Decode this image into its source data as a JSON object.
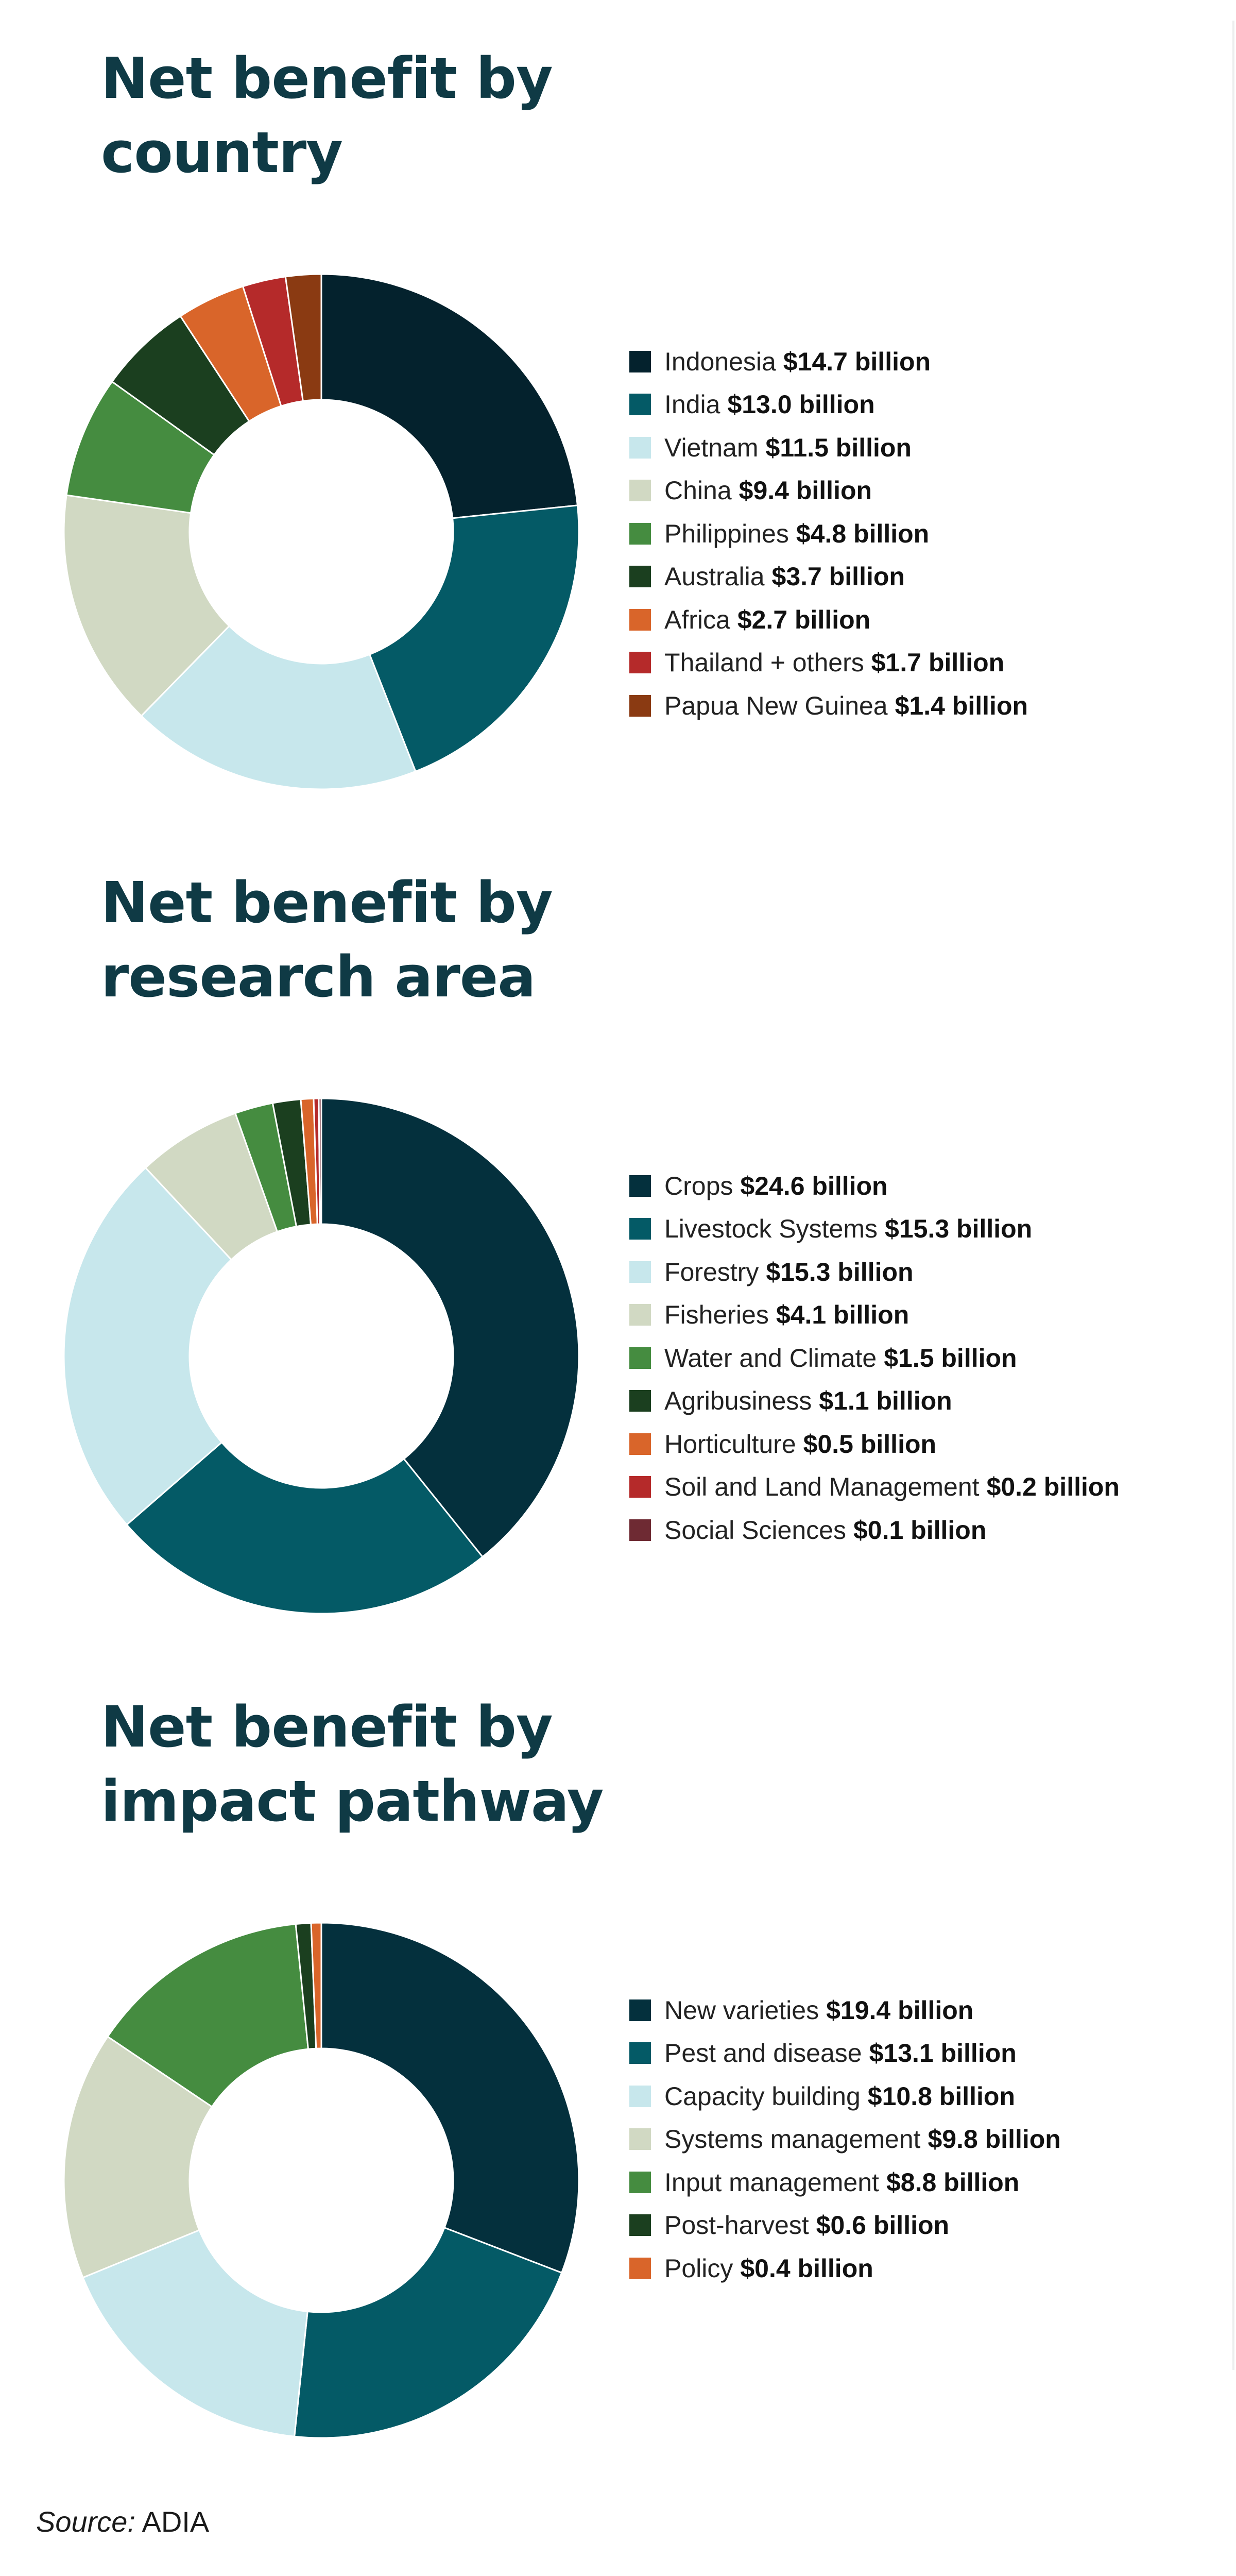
{
  "chart_data": [
    {
      "type": "pie",
      "title_lines": [
        "Net benefit by",
        "country"
      ],
      "donut": true,
      "categories": [
        "Indonesia",
        "India",
        "Vietnam",
        "China",
        "Philippines",
        "Australia",
        "Africa",
        "Thailand + others",
        "Papua New Guinea"
      ],
      "values": [
        14.7,
        13.0,
        11.5,
        9.4,
        4.8,
        3.7,
        2.7,
        1.7,
        1.4
      ],
      "labels": [
        "$14.7 billion",
        "$13.0 billion",
        "$11.5 billion",
        "$9.4 billion",
        "$4.8 billion",
        "$3.7 billion",
        "$2.7 billion",
        "$1.7 billion",
        "$1.4 billion"
      ],
      "colors": [
        "#04222d",
        "#045a66",
        "#c7e7ec",
        "#d1d9c3",
        "#458c40",
        "#1b3f1f",
        "#d9652a",
        "#b52a2a",
        "#8a3a12"
      ],
      "legend_position": "right"
    },
    {
      "type": "pie",
      "title_lines": [
        "Net benefit by",
        "research area"
      ],
      "donut": true,
      "categories": [
        "Crops",
        "Livestock Systems",
        "Forestry",
        "Fisheries",
        "Water and Climate",
        "Agribusiness",
        "Horticulture",
        "Soil and Land Management",
        "Social Sciences"
      ],
      "values": [
        24.6,
        15.3,
        15.3,
        4.1,
        1.5,
        1.1,
        0.5,
        0.2,
        0.1
      ],
      "labels": [
        "$24.6 billion",
        "$15.3 billion",
        "$15.3 billion",
        "$4.1 billion",
        "$1.5 billion",
        "$1.1 billion",
        "$0.5 billion",
        "$0.2 billion",
        "$0.1 billion"
      ],
      "colors": [
        "#04303d",
        "#045a66",
        "#c7e7ec",
        "#d1d9c3",
        "#458c40",
        "#1b3f1f",
        "#d9652a",
        "#b52a2a",
        "#6e2a33"
      ],
      "legend_position": "right"
    },
    {
      "type": "pie",
      "title_lines": [
        "Net benefit by",
        "impact pathway"
      ],
      "donut": true,
      "categories": [
        "New varieties",
        "Pest and disease",
        "Capacity building",
        "Systems management",
        "Input management",
        "Post-harvest",
        "Policy"
      ],
      "values": [
        19.4,
        13.1,
        10.8,
        9.8,
        8.8,
        0.6,
        0.4
      ],
      "labels": [
        "$19.4 billion",
        "$13.1 billion",
        "$10.8 billion",
        "$9.8 billion",
        "$8.8 billion",
        "$0.6 billion",
        "$0.4 billion"
      ],
      "colors": [
        "#04303d",
        "#045a66",
        "#c7e7ec",
        "#d1d9c3",
        "#458c40",
        "#1b3f1f",
        "#d9652a"
      ],
      "legend_position": "right"
    }
  ],
  "source": {
    "label": "Source:",
    "value": "ADIA"
  }
}
